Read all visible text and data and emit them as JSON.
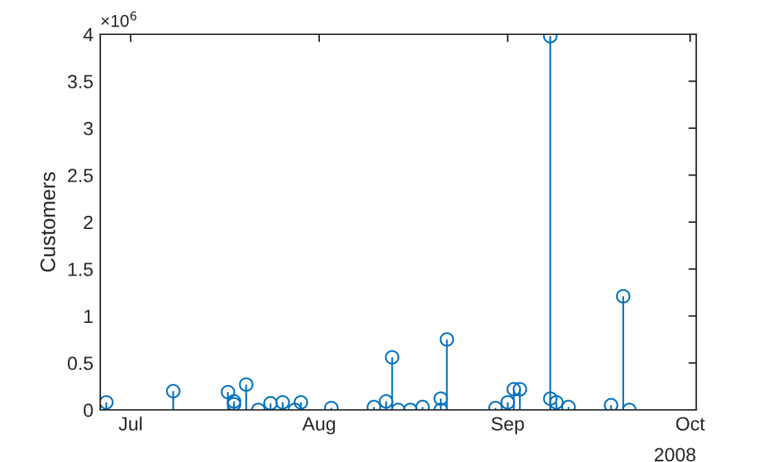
{
  "chart_data": {
    "type": "lollipop",
    "ylabel": "Customers",
    "x": [
      "2008-06-27",
      "2008-07-08",
      "2008-07-17",
      "2008-07-18",
      "2008-07-18",
      "2008-07-20",
      "2008-07-22",
      "2008-07-24",
      "2008-07-26",
      "2008-07-28",
      "2008-07-29",
      "2008-08-03",
      "2008-08-10",
      "2008-08-12",
      "2008-08-13",
      "2008-08-14",
      "2008-08-16",
      "2008-08-18",
      "2008-08-21",
      "2008-08-21",
      "2008-08-22",
      "2008-08-30",
      "2008-09-01",
      "2008-09-02",
      "2008-09-03",
      "2008-09-08",
      "2008-09-08",
      "2008-09-09",
      "2008-09-11",
      "2008-09-18",
      "2008-09-20",
      "2008-09-21"
    ],
    "series": [
      {
        "color": "#0072bd",
        "values": [
          0.08,
          0.2,
          0.19,
          0.09,
          0.06,
          0.27,
          0.0,
          0.07,
          0.08,
          0.0,
          0.08,
          0.02,
          0.03,
          0.09,
          0.56,
          0.0,
          0.0,
          0.03,
          0.0,
          0.12,
          0.75,
          0.02,
          0.08,
          0.22,
          0.22,
          3.98,
          0.12,
          0.08,
          0.03,
          0.05,
          1.21,
          0.0
        ]
      }
    ],
    "marker": "circle",
    "grid": false,
    "legend": false,
    "xlim": [
      "2008-06-26",
      "2008-10-02"
    ],
    "xticks": [
      {
        "value": "2008-07-01",
        "label": "Jul"
      },
      {
        "value": "2008-08-01",
        "label": "Aug"
      },
      {
        "value": "2008-09-01",
        "label": "Sep"
      },
      {
        "value": "2008-10-01",
        "label": "Oct"
      }
    ],
    "ylim": [
      0,
      4
    ],
    "yticks": [
      0,
      0.5,
      1,
      1.5,
      2,
      2.5,
      3,
      3.5,
      4
    ],
    "annotations": [
      "×10$^{6}$",
      "2008"
    ]
  }
}
